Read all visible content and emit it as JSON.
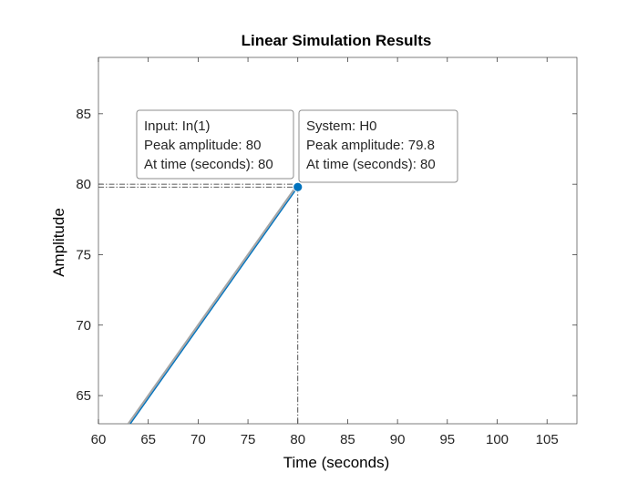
{
  "chart_data": {
    "type": "line",
    "title": "Linear Simulation Results",
    "xlabel": "Time (seconds)",
    "ylabel": "Amplitude",
    "xlim": [
      60,
      108
    ],
    "ylim": [
      63,
      89
    ],
    "xticks": [
      60,
      65,
      70,
      75,
      80,
      85,
      90,
      95,
      100,
      105
    ],
    "yticks": [
      65,
      70,
      75,
      80,
      85
    ],
    "grid": false,
    "series": [
      {
        "name": "In(1)",
        "color": "#a6a6a6",
        "x": [
          63,
          80
        ],
        "y": [
          63,
          80
        ]
      },
      {
        "name": "H0",
        "color": "#0072bd",
        "x": [
          63,
          80
        ],
        "y": [
          62.8,
          79.8
        ]
      }
    ],
    "peak_marker": {
      "x": 80,
      "y": 79.8,
      "color": "#0072bd"
    },
    "datatips": [
      {
        "lines": [
          "Input: In(1)",
          "Peak amplitude: 80",
          "At time (seconds): 80"
        ]
      },
      {
        "lines": [
          "System: H0",
          "Peak amplitude: 79.8",
          "At time (seconds): 80"
        ]
      }
    ]
  }
}
